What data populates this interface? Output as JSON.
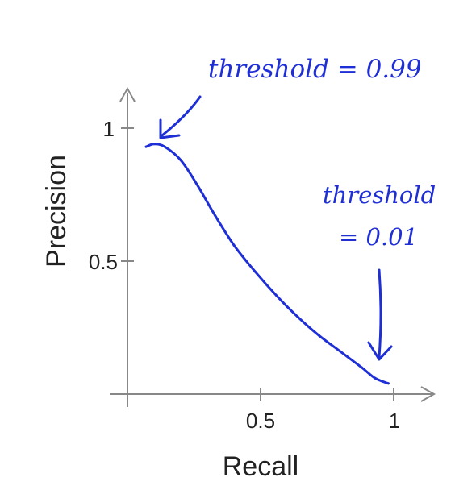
{
  "chart_data": {
    "type": "line",
    "xlabel": "Recall",
    "ylabel": "Precision",
    "xlim": [
      0,
      1.12
    ],
    "ylim": [
      0,
      1.12
    ],
    "x_ticks": [
      {
        "value": 0.5,
        "label": "0.5"
      },
      {
        "value": 1,
        "label": "1"
      }
    ],
    "y_ticks": [
      {
        "value": 0.5,
        "label": "0.5"
      },
      {
        "value": 1,
        "label": "1"
      }
    ],
    "grid": false,
    "series": [
      {
        "color": "#1f2fd6",
        "points": [
          {
            "x": 0.07,
            "y": 0.93
          },
          {
            "x": 0.1,
            "y": 0.94
          },
          {
            "x": 0.14,
            "y": 0.93
          },
          {
            "x": 0.2,
            "y": 0.88
          },
          {
            "x": 0.26,
            "y": 0.79
          },
          {
            "x": 0.33,
            "y": 0.67
          },
          {
            "x": 0.4,
            "y": 0.56
          },
          {
            "x": 0.48,
            "y": 0.46
          },
          {
            "x": 0.56,
            "y": 0.37
          },
          {
            "x": 0.64,
            "y": 0.29
          },
          {
            "x": 0.72,
            "y": 0.22
          },
          {
            "x": 0.8,
            "y": 0.16
          },
          {
            "x": 0.88,
            "y": 0.1
          },
          {
            "x": 0.93,
            "y": 0.06
          },
          {
            "x": 0.98,
            "y": 0.04
          }
        ]
      }
    ],
    "annotations": [
      {
        "id": "high-threshold",
        "lines": [
          "threshold = 0.99"
        ],
        "points_to": {
          "x": 0.11,
          "y": 0.96
        }
      },
      {
        "id": "low-threshold",
        "lines": [
          "threshold",
          "= 0.01"
        ],
        "points_to": {
          "x": 0.93,
          "y": 0.09
        }
      }
    ]
  },
  "ink_color": "#1f2fd6",
  "axis_color": "#888888"
}
